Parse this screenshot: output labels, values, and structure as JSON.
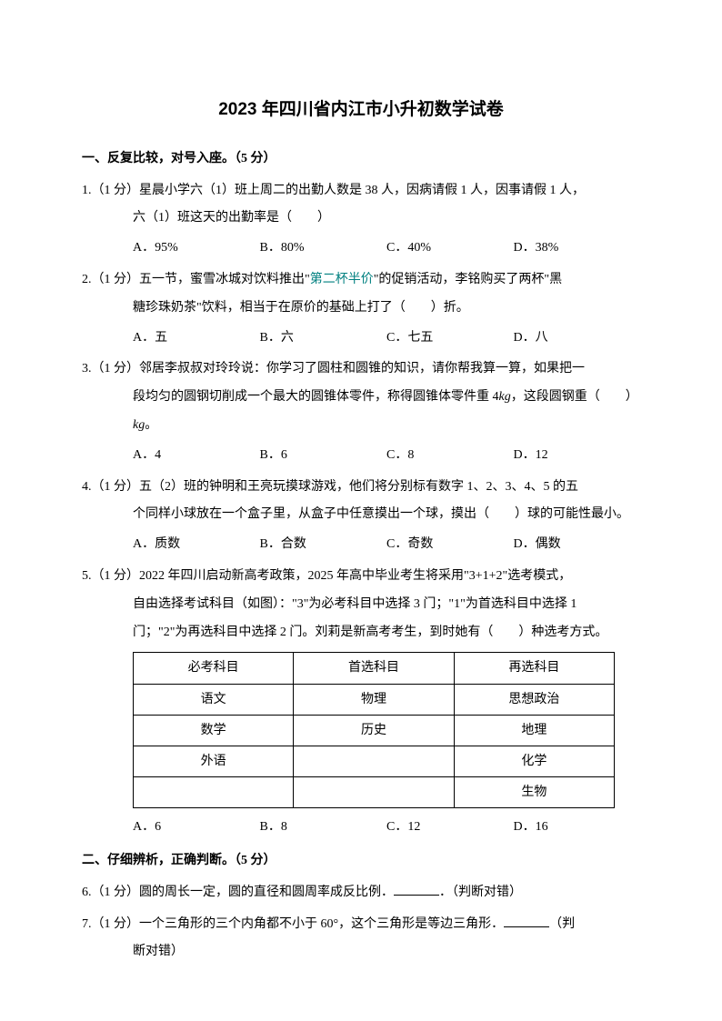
{
  "title": "2023 年四川省内江市小升初数学试卷",
  "section1": {
    "header": "一、反复比较，对号入座。（5 分）"
  },
  "q1": {
    "line1": "1.（1 分）星晨小学六（1）班上周二的出勤人数是 38 人，因病请假 1 人，因事请假 1 人，",
    "line2": "六（1）班这天的出勤率是（　　）",
    "optA": "A．95%",
    "optB": "B．80%",
    "optC": "C．40%",
    "optD": "D．38%"
  },
  "q2": {
    "line1_a": "2.（1 分）五一节，蜜雪冰城对饮料推出\"",
    "line1_special": "第二杯半价",
    "line1_b": "\"的促销活动，李铭购买了两杯\"黑",
    "line2": "糖珍珠奶茶\"饮料，相当于在原价的基础上打了（　　）折。",
    "optA": "A．五",
    "optB": "B．六",
    "optC": "C．七五",
    "optD": "D．八"
  },
  "q3": {
    "line1": "3.（1 分）邻居李叔叔对玲玲说：你学习了圆柱和圆锥的知识，请你帮我算一算，如果把一",
    "line2_a": "段均匀的圆钢切削成一个最大的圆锥体零件，称得圆锥体零件重 4",
    "line2_kg": "kg",
    "line2_b": "，这段圆钢重（　　）",
    "line3_kg": "kg",
    "line3_b": "。",
    "optA": "A．4",
    "optB": "B．6",
    "optC": "C．8",
    "optD": "D．12"
  },
  "q4": {
    "line1": "4.（1 分）五（2）班的钟明和王亮玩摸球游戏，他们将分别标有数字 1、2、3、4、5 的五",
    "line2": "个同样小球放在一个盒子里，从盒子中任意摸出一个球，摸出（　　）球的可能性最小。",
    "optA": "A．质数",
    "optB": "B．合数",
    "optC": "C．奇数",
    "optD": "D．偶数"
  },
  "q5": {
    "line1": "5.（1 分）2022 年四川启动新高考政策，2025 年高中毕业考生将采用\"3+1+2\"选考模式，",
    "line2": "自由选择考试科目（如图）：\"3\"为必考科目中选择 3 门；\"1\"为首选科目中选择 1",
    "line3": "门；\"2\"为再选科目中选择 2 门。刘莉是新高考考生，到时她有（　　）种选考方式。",
    "table": {
      "headers": [
        "必考科目",
        "首选科目",
        "再选科目"
      ],
      "rows": [
        [
          "语文",
          "物理",
          "思想政治"
        ],
        [
          "数学",
          "历史",
          "地理"
        ],
        [
          "外语",
          "",
          "化学"
        ],
        [
          "",
          "",
          "生物"
        ]
      ]
    },
    "optA": "A．6",
    "optB": "B．8",
    "optC": "C．12",
    "optD": "D．16"
  },
  "section2": {
    "header": "二、仔细辨析，正确判断。（5 分）"
  },
  "q6": {
    "text": "6.（1 分）圆的周长一定，圆的直径和圆周率成反比例．",
    "suffix": "．（判断对错）"
  },
  "q7": {
    "line1": "7.（1 分）一个三角形的三个内角都不小于 60°，这个三角形是等边三角形．",
    "line1_suffix": "（判",
    "line2": "断对错）"
  }
}
